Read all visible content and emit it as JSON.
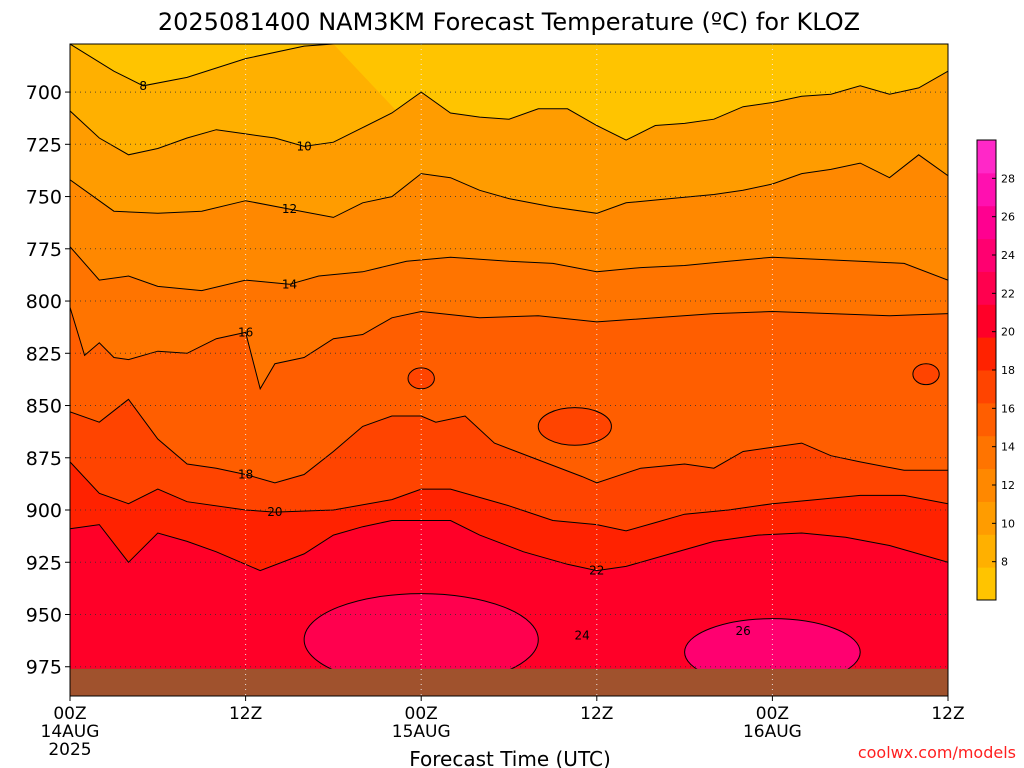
{
  "chart_data": {
    "type": "heatmap",
    "title": "2025081400 NAM3KM Forecast Temperature (ºC) for KLOZ",
    "xlabel": "Forecast Time (UTC)",
    "ylabel": "",
    "x_ticks": [
      {
        "hour": 0,
        "label": "00Z",
        "sub": [
          "14AUG",
          "2025"
        ]
      },
      {
        "hour": 12,
        "label": "12Z",
        "sub": []
      },
      {
        "hour": 24,
        "label": "00Z",
        "sub": [
          "15AUG"
        ]
      },
      {
        "hour": 36,
        "label": "12Z",
        "sub": []
      },
      {
        "hour": 48,
        "label": "00Z",
        "sub": [
          "16AUG"
        ]
      },
      {
        "hour": 60,
        "label": "12Z",
        "sub": []
      }
    ],
    "xlim_hours": [
      0,
      60
    ],
    "y_ticks": [
      "700",
      "725",
      "750",
      "775",
      "800",
      "825",
      "850",
      "875",
      "900",
      "925",
      "950",
      "975"
    ],
    "ylim_hpa": [
      677,
      989
    ],
    "y_reversed": true,
    "grid": "dotted",
    "colorbar": {
      "labels": [
        "8",
        "10",
        "12",
        "14",
        "16",
        "18",
        "20",
        "22",
        "24",
        "26",
        "28"
      ],
      "min": 6,
      "max": 30,
      "step": 2,
      "colors": [
        "#ffc400",
        "#ffb000",
        "#ff9c00",
        "#ff8800",
        "#ff7400",
        "#ff5e00",
        "#ff4400",
        "#ff2200",
        "#ff0028",
        "#ff004e",
        "#ff0070",
        "#ff0090",
        "#ff10b0",
        "#ff28c8"
      ]
    },
    "series": [
      {
        "name": "8",
        "label_pos": [
          5,
          697
        ],
        "values": [
          [
            0,
            677
          ],
          [
            3,
            690
          ],
          [
            5,
            697
          ],
          [
            8,
            693
          ],
          [
            12,
            684
          ],
          [
            16,
            678
          ],
          [
            18,
            677
          ]
        ]
      },
      {
        "name": "10",
        "label_pos": [
          16,
          726
        ],
        "values": [
          [
            0,
            709
          ],
          [
            2,
            722
          ],
          [
            4,
            730
          ],
          [
            6,
            727
          ],
          [
            8,
            722
          ],
          [
            10,
            718
          ],
          [
            12,
            720
          ],
          [
            14,
            722
          ],
          [
            16,
            726
          ],
          [
            18,
            724
          ],
          [
            20,
            717
          ],
          [
            22,
            710
          ],
          [
            24,
            700
          ],
          [
            26,
            710
          ],
          [
            28,
            712
          ],
          [
            30,
            713
          ],
          [
            32,
            708
          ],
          [
            34,
            708
          ],
          [
            36,
            716
          ],
          [
            38,
            723
          ],
          [
            40,
            716
          ],
          [
            42,
            715
          ],
          [
            44,
            713
          ],
          [
            46,
            707
          ],
          [
            48,
            705
          ],
          [
            50,
            702
          ],
          [
            52,
            701
          ],
          [
            54,
            697
          ],
          [
            56,
            701
          ],
          [
            58,
            698
          ],
          [
            60,
            690
          ]
        ]
      },
      {
        "name": "12",
        "label_pos": [
          15,
          756
        ],
        "values": [
          [
            0,
            742
          ],
          [
            3,
            757
          ],
          [
            6,
            758
          ],
          [
            9,
            757
          ],
          [
            12,
            752
          ],
          [
            15,
            756
          ],
          [
            18,
            760
          ],
          [
            20,
            753
          ],
          [
            22,
            750
          ],
          [
            24,
            739
          ],
          [
            26,
            741
          ],
          [
            28,
            747
          ],
          [
            30,
            751
          ],
          [
            33,
            755
          ],
          [
            36,
            758
          ],
          [
            38,
            753
          ],
          [
            41,
            751
          ],
          [
            44,
            749
          ],
          [
            46,
            747
          ],
          [
            48,
            744
          ],
          [
            50,
            739
          ],
          [
            52,
            737
          ],
          [
            54,
            734
          ],
          [
            56,
            741
          ],
          [
            58,
            730
          ],
          [
            60,
            740
          ]
        ]
      },
      {
        "name": "14",
        "label_pos": [
          15,
          792
        ],
        "values": [
          [
            0,
            774
          ],
          [
            2,
            790
          ],
          [
            4,
            788
          ],
          [
            6,
            793
          ],
          [
            9,
            795
          ],
          [
            12,
            790
          ],
          [
            15,
            792
          ],
          [
            17,
            788
          ],
          [
            20,
            786
          ],
          [
            23,
            781
          ],
          [
            26,
            779
          ],
          [
            30,
            781
          ],
          [
            33,
            782
          ],
          [
            36,
            786
          ],
          [
            39,
            784
          ],
          [
            42,
            783
          ],
          [
            45,
            781
          ],
          [
            48,
            779
          ],
          [
            51,
            780
          ],
          [
            54,
            781
          ],
          [
            57,
            782
          ],
          [
            60,
            790
          ]
        ]
      },
      {
        "name": "16",
        "label_pos": [
          12,
          815
        ],
        "values": [
          [
            0,
            803
          ],
          [
            1,
            826
          ],
          [
            2,
            820
          ],
          [
            3,
            827
          ],
          [
            4,
            828
          ],
          [
            6,
            824
          ],
          [
            8,
            825
          ],
          [
            10,
            818
          ],
          [
            12,
            815
          ],
          [
            13,
            842
          ],
          [
            14,
            830
          ],
          [
            16,
            827
          ],
          [
            18,
            818
          ],
          [
            20,
            816
          ],
          [
            22,
            808
          ],
          [
            24,
            805
          ],
          [
            28,
            808
          ],
          [
            32,
            807
          ],
          [
            36,
            810
          ],
          [
            40,
            808
          ],
          [
            44,
            806
          ],
          [
            48,
            805
          ],
          [
            52,
            806
          ],
          [
            56,
            807
          ],
          [
            60,
            806
          ]
        ]
      },
      {
        "name": "18",
        "label_pos": [
          12,
          883
        ],
        "values": [
          [
            0,
            853
          ],
          [
            2,
            858
          ],
          [
            4,
            847
          ],
          [
            6,
            866
          ],
          [
            8,
            878
          ],
          [
            10,
            880
          ],
          [
            12,
            883
          ],
          [
            14,
            887
          ],
          [
            16,
            883
          ],
          [
            18,
            872
          ],
          [
            20,
            860
          ],
          [
            22,
            855
          ],
          [
            24,
            855
          ],
          [
            25,
            858
          ],
          [
            27,
            855
          ],
          [
            29,
            868
          ],
          [
            32,
            876
          ],
          [
            35,
            884
          ],
          [
            36,
            887
          ],
          [
            39,
            880
          ],
          [
            42,
            878
          ],
          [
            44,
            880
          ],
          [
            46,
            872
          ],
          [
            48,
            870
          ],
          [
            50,
            868
          ],
          [
            52,
            874
          ],
          [
            54,
            877
          ],
          [
            57,
            881
          ],
          [
            60,
            881
          ]
        ]
      },
      {
        "name": "20",
        "label_pos": [
          14,
          901
        ],
        "values": [
          [
            0,
            877
          ],
          [
            2,
            892
          ],
          [
            4,
            897
          ],
          [
            6,
            890
          ],
          [
            8,
            896
          ],
          [
            12,
            900
          ],
          [
            14,
            901
          ],
          [
            18,
            900
          ],
          [
            22,
            895
          ],
          [
            24,
            890
          ],
          [
            26,
            890
          ],
          [
            30,
            898
          ],
          [
            33,
            905
          ],
          [
            36,
            907
          ],
          [
            38,
            910
          ],
          [
            40,
            906
          ],
          [
            42,
            902
          ],
          [
            45,
            900
          ],
          [
            48,
            897
          ],
          [
            51,
            895
          ],
          [
            54,
            893
          ],
          [
            57,
            893
          ],
          [
            60,
            897
          ]
        ]
      },
      {
        "name": "22",
        "label_pos": [
          36,
          929
        ],
        "values": [
          [
            0,
            909
          ],
          [
            2,
            907
          ],
          [
            4,
            925
          ],
          [
            6,
            911
          ],
          [
            8,
            915
          ],
          [
            10,
            920
          ],
          [
            13,
            929
          ],
          [
            16,
            921
          ],
          [
            18,
            912
          ],
          [
            20,
            908
          ],
          [
            22,
            905
          ],
          [
            24,
            905
          ],
          [
            26,
            905
          ],
          [
            28,
            912
          ],
          [
            31,
            920
          ],
          [
            34,
            926
          ],
          [
            36,
            929
          ],
          [
            38,
            927
          ],
          [
            41,
            921
          ],
          [
            44,
            915
          ],
          [
            47,
            912
          ],
          [
            50,
            911
          ],
          [
            53,
            913
          ],
          [
            56,
            917
          ],
          [
            60,
            925
          ]
        ]
      }
    ],
    "islands": [
      {
        "value": "18",
        "center": [
          24,
          837
        ],
        "r": [
          0.9,
          5
        ]
      },
      {
        "value": "18",
        "center": [
          34.5,
          860
        ],
        "r": [
          2.5,
          9
        ]
      },
      {
        "value": "18",
        "center": [
          58.5,
          835
        ],
        "r": [
          0.9,
          5
        ]
      },
      {
        "value": "24",
        "center": [
          24,
          962
        ],
        "r": [
          8,
          22
        ],
        "label_pos": [
          35,
          960
        ]
      },
      {
        "value": "26",
        "center": [
          48,
          968
        ],
        "r": [
          6,
          16
        ],
        "label_pos": [
          46,
          958
        ]
      }
    ],
    "terrain": {
      "surface_hpa": 976,
      "color": "#a0522d"
    }
  },
  "watermark": "coolwx.com/models",
  "colors": {
    "watermark": "#ff2020",
    "contour": "#000000",
    "terrain": "#a0522d"
  }
}
